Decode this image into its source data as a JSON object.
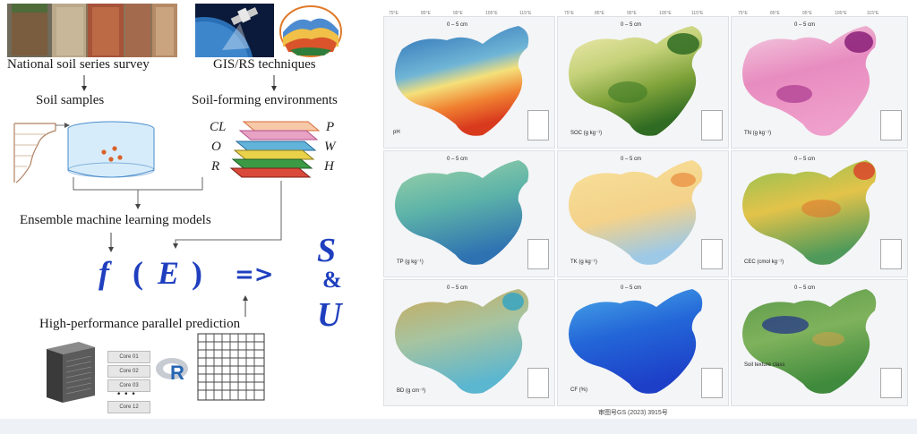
{
  "workflow": {
    "survey_label": "National soil series survey",
    "gis_label": "GIS/RS techniques",
    "samples_label": "Soil samples",
    "environments_label": "Soil-forming environments",
    "layers_left": [
      "CL",
      "O",
      "R"
    ],
    "layers_right": [
      "P",
      "W",
      "H"
    ],
    "ensemble_label": "Ensemble machine learning models",
    "formula_f": "f",
    "formula_open": "(",
    "formula_e": "E",
    "formula_close": ")",
    "formula_arrow": "=>",
    "output_s": "S",
    "output_amp": "&",
    "output_u": "U",
    "parallel_label": "High-performance parallel prediction",
    "cores": [
      "Core 01",
      "Core 02",
      "Core 03",
      "• • •",
      "Core 12"
    ],
    "r_logo": "R"
  },
  "maps": {
    "depth_label": "0 – 5 cm",
    "panels": [
      {
        "legend": "pH",
        "palette": "ph"
      },
      {
        "legend": "SOC (g kg⁻¹)",
        "palette": "soc"
      },
      {
        "legend": "TN (g kg⁻¹)",
        "palette": "tn"
      },
      {
        "legend": "TP (g kg⁻¹)",
        "palette": "tp"
      },
      {
        "legend": "TK (g kg⁻¹)",
        "palette": "tk"
      },
      {
        "legend": "CEC (cmol kg⁻¹)",
        "palette": "cec"
      },
      {
        "legend": "BD (g cm⁻³)",
        "palette": "bd"
      },
      {
        "legend": "CF (%)",
        "palette": "cf"
      },
      {
        "legend": "Soil texture class",
        "palette": "tex"
      }
    ],
    "caption": "审图号GS (2023) 3915号"
  }
}
